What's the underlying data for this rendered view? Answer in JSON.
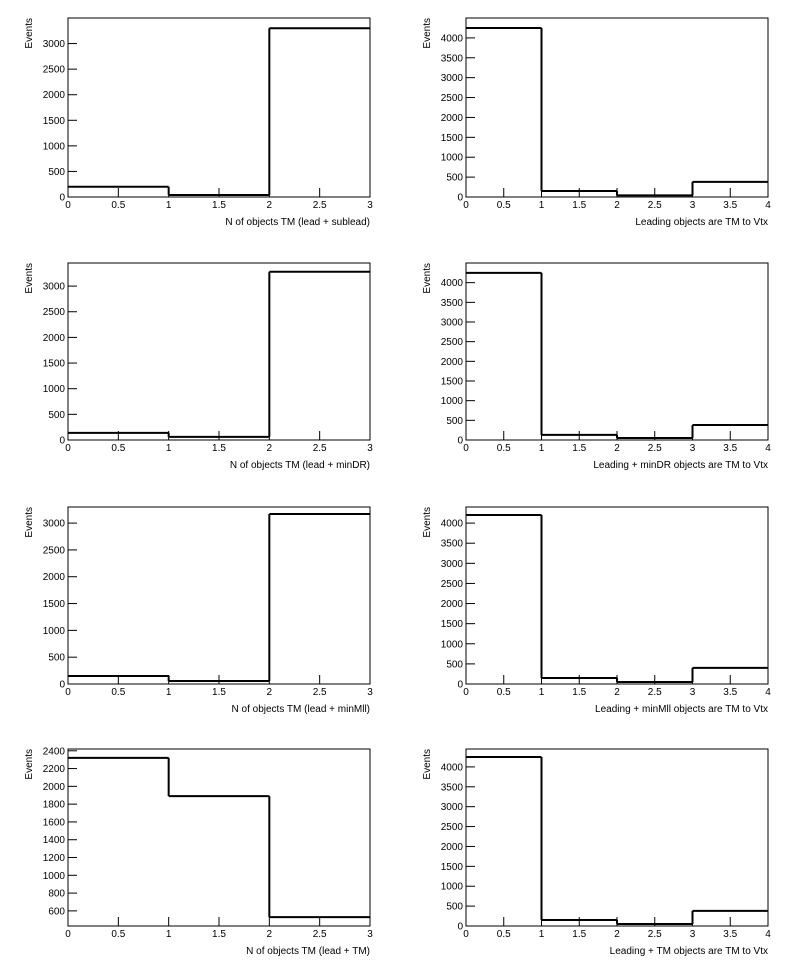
{
  "chart_data": [
    {
      "type": "histogram",
      "xlabel": "N of objects TM (lead + sublead)",
      "ylabel": "Events",
      "color": "#000000",
      "bins": [
        0,
        1,
        2,
        3
      ],
      "values": [
        200,
        40,
        3300
      ],
      "xlim": [
        0,
        3
      ],
      "xticks": [
        0,
        0.5,
        1,
        1.5,
        2,
        2.5,
        3
      ],
      "ylim": [
        0,
        3500
      ],
      "yticks": [
        0,
        500,
        1000,
        1500,
        2000,
        2500,
        3000
      ]
    },
    {
      "type": "histogram",
      "xlabel": "Leading objects are TM to Vtx",
      "ylabel": "Events",
      "color": "#000000",
      "bins": [
        0,
        1,
        2,
        3,
        4
      ],
      "values": [
        4250,
        150,
        40,
        380
      ],
      "xlim": [
        0,
        4
      ],
      "xticks": [
        0,
        0.5,
        1,
        1.5,
        2,
        2.5,
        3,
        3.5,
        4
      ],
      "ylim": [
        0,
        4500
      ],
      "yticks": [
        0,
        500,
        1000,
        1500,
        2000,
        2500,
        3000,
        3500,
        4000
      ]
    },
    {
      "type": "histogram",
      "xlabel": "N of objects TM (lead + minDR)",
      "ylabel": "Events",
      "color": "#000000",
      "bins": [
        0,
        1,
        2,
        3
      ],
      "values": [
        140,
        60,
        3280
      ],
      "xlim": [
        0,
        3
      ],
      "xticks": [
        0,
        0.5,
        1,
        1.5,
        2,
        2.5,
        3
      ],
      "ylim": [
        0,
        3450
      ],
      "yticks": [
        0,
        500,
        1000,
        1500,
        2000,
        2500,
        3000
      ]
    },
    {
      "type": "histogram",
      "xlabel": "Leading + minDR objects are TM to Vtx",
      "ylabel": "Events",
      "color": "#000000",
      "bins": [
        0,
        1,
        2,
        3,
        4
      ],
      "values": [
        4250,
        130,
        50,
        380
      ],
      "xlim": [
        0,
        4
      ],
      "xticks": [
        0,
        0.5,
        1,
        1.5,
        2,
        2.5,
        3,
        3.5,
        4
      ],
      "ylim": [
        0,
        4500
      ],
      "yticks": [
        0,
        500,
        1000,
        1500,
        2000,
        2500,
        3000,
        3500,
        4000
      ]
    },
    {
      "type": "histogram",
      "xlabel": "N of objects TM (lead + minMll)",
      "ylabel": "Events",
      "color": "#000000",
      "bins": [
        0,
        1,
        2,
        3
      ],
      "values": [
        150,
        56,
        3170
      ],
      "xlim": [
        0,
        3
      ],
      "xticks": [
        0,
        0.5,
        1,
        1.5,
        2,
        2.5,
        3
      ],
      "ylim": [
        0,
        3300
      ],
      "yticks": [
        0,
        500,
        1000,
        1500,
        2000,
        2500,
        3000
      ]
    },
    {
      "type": "histogram",
      "xlabel": "Leading + minMll objects are TM to Vtx",
      "ylabel": "Events",
      "color": "#000000",
      "bins": [
        0,
        1,
        2,
        3,
        4
      ],
      "values": [
        4200,
        150,
        50,
        400
      ],
      "xlim": [
        0,
        4
      ],
      "xticks": [
        0,
        0.5,
        1,
        1.5,
        2,
        2.5,
        3,
        3.5,
        4
      ],
      "ylim": [
        0,
        4400
      ],
      "yticks": [
        0,
        500,
        1000,
        1500,
        2000,
        2500,
        3000,
        3500,
        4000
      ]
    },
    {
      "type": "histogram",
      "xlabel": "N of objects TM (lead + TM)",
      "ylabel": "Events",
      "color": "#000000",
      "bins": [
        0,
        1,
        2,
        3
      ],
      "values": [
        2320,
        1890,
        530
      ],
      "xlim": [
        0,
        3
      ],
      "xticks": [
        0,
        0.5,
        1,
        1.5,
        2,
        2.5,
        3
      ],
      "ylim": [
        430,
        2420
      ],
      "yticks": [
        600,
        800,
        1000,
        1200,
        1400,
        1600,
        1800,
        2000,
        2200,
        2400
      ]
    },
    {
      "type": "histogram",
      "xlabel": "Leading + TM objects are TM to Vtx",
      "ylabel": "Events",
      "color": "#000000",
      "bins": [
        0,
        1,
        2,
        3,
        4
      ],
      "values": [
        4250,
        150,
        50,
        380
      ],
      "xlim": [
        0,
        4
      ],
      "xticks": [
        0,
        0.5,
        1,
        1.5,
        2,
        2.5,
        3,
        3.5,
        4
      ],
      "ylim": [
        0,
        4450
      ],
      "yticks": [
        0,
        500,
        1000,
        1500,
        2000,
        2500,
        3000,
        3500,
        4000
      ]
    }
  ]
}
